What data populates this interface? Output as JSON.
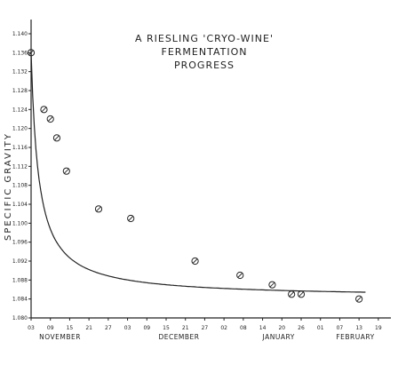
{
  "chart_data": {
    "type": "line",
    "title_lines": [
      "A RIESLING 'CRYO-WINE'",
      "FERMENTATION",
      "PROGRESS"
    ],
    "ylabel": "SPECIFIC GRAVITY",
    "xlabel": "",
    "ylim": [
      1.08,
      1.14
    ],
    "yticks": [
      "1.140",
      "1.136",
      "1.132",
      "1.128",
      "1.124",
      "1.120",
      "1.116",
      "1.112",
      "1.108",
      "1.104",
      "1.100",
      "1.096",
      "1.092",
      "1.088",
      "1.084",
      "1.080"
    ],
    "yticks_shown": [
      "1.140",
      "1.136",
      "1.132",
      "1.128",
      "1.124",
      "1.120",
      "1.116",
      "1.112",
      "1.108",
      "1.104",
      "1.100",
      "1.096",
      "1.092",
      "1.088",
      "1.084",
      "1.080"
    ],
    "xlim": [
      0,
      105
    ],
    "xticks": [
      {
        "x": 0,
        "label": "03"
      },
      {
        "x": 6,
        "label": "09"
      },
      {
        "x": 12,
        "label": "15"
      },
      {
        "x": 18,
        "label": "21"
      },
      {
        "x": 24,
        "label": "27"
      },
      {
        "x": 30,
        "label": "03"
      },
      {
        "x": 36,
        "label": "09"
      },
      {
        "x": 42,
        "label": "15"
      },
      {
        "x": 48,
        "label": "21"
      },
      {
        "x": 54,
        "label": "27"
      },
      {
        "x": 60,
        "label": "02"
      },
      {
        "x": 66,
        "label": "08"
      },
      {
        "x": 72,
        "label": "14"
      },
      {
        "x": 78,
        "label": "20"
      },
      {
        "x": 84,
        "label": "26"
      },
      {
        "x": 90,
        "label": "01"
      },
      {
        "x": 96,
        "label": "07"
      },
      {
        "x": 102,
        "label": "13"
      },
      {
        "x": 108,
        "label": "19"
      }
    ],
    "months": [
      {
        "x": 9,
        "label": "NOVEMBER"
      },
      {
        "x": 46,
        "label": "DECEMBER"
      },
      {
        "x": 77,
        "label": "JANUARY"
      },
      {
        "x": 105,
        "label": "FEBRUARY"
      }
    ],
    "series": [
      {
        "points": [
          {
            "x": 0,
            "y": 1.136
          },
          {
            "x": 4,
            "y": 1.124
          },
          {
            "x": 6,
            "y": 1.122
          },
          {
            "x": 8,
            "y": 1.118
          },
          {
            "x": 11,
            "y": 1.111
          },
          {
            "x": 21,
            "y": 1.103
          },
          {
            "x": 31,
            "y": 1.101
          },
          {
            "x": 51,
            "y": 1.092
          },
          {
            "x": 65,
            "y": 1.089
          },
          {
            "x": 75,
            "y": 1.087
          },
          {
            "x": 81,
            "y": 1.085
          },
          {
            "x": 84,
            "y": 1.085
          },
          {
            "x": 102,
            "y": 1.084
          }
        ]
      }
    ],
    "grid": false
  }
}
